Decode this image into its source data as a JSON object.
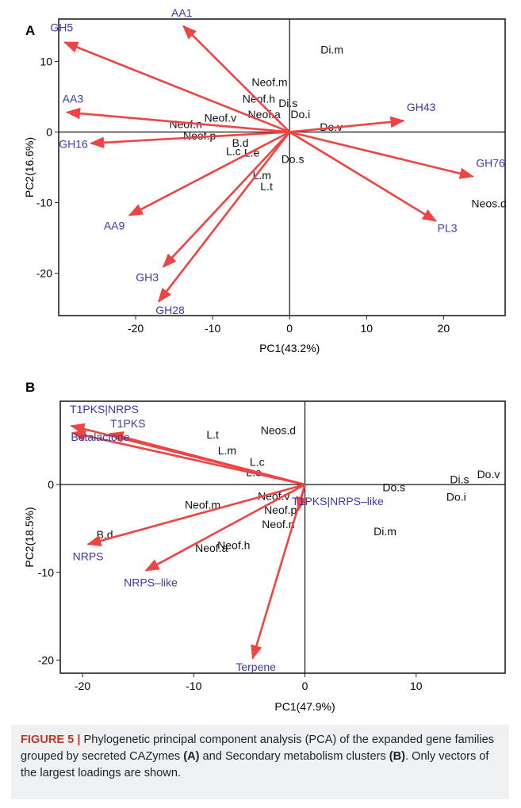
{
  "chart_data": [
    {
      "panel": "A",
      "type": "scatter",
      "subtype": "pca-biplot",
      "xlabel": "PC1(43.2%)",
      "ylabel": "PC2(16.6%)",
      "xlim": [
        -30,
        28
      ],
      "ylim": [
        -26,
        16
      ],
      "xticks": [
        -20,
        -10,
        0,
        10,
        20
      ],
      "yticks": [
        -20,
        -10,
        0,
        10
      ],
      "grid": false,
      "zero_lines": true,
      "arrow_color": "#ee4444",
      "vector_label_color": "#3a3aa8",
      "vectors": [
        {
          "label": "AA1",
          "x": -13.8,
          "y": 15.0
        },
        {
          "label": "GH5",
          "x": -29.2,
          "y": 12.7
        },
        {
          "label": "AA3",
          "x": -28.9,
          "y": 2.8
        },
        {
          "label": "GH16",
          "x": -25.8,
          "y": -1.6
        },
        {
          "label": "AA9",
          "x": -20.8,
          "y": -11.8
        },
        {
          "label": "GH3",
          "x": -16.4,
          "y": -19.1
        },
        {
          "label": "GH28",
          "x": -17.0,
          "y": -24.0
        },
        {
          "label": "GH43",
          "x": 14.8,
          "y": 1.6
        },
        {
          "label": "GH76",
          "x": 23.8,
          "y": -6.3
        },
        {
          "label": "PL3",
          "x": 19.0,
          "y": -12.6
        }
      ],
      "points": [
        {
          "label": "Di.m",
          "x": 5.5,
          "y": 11.7
        },
        {
          "label": "Neof.m",
          "x": -2.6,
          "y": 7.1
        },
        {
          "label": "Neof.h",
          "x": -4.0,
          "y": 4.7
        },
        {
          "label": "Di.s",
          "x": -0.2,
          "y": 4.1
        },
        {
          "label": "Neof.v",
          "x": -9.0,
          "y": 2.0
        },
        {
          "label": "Neof.a",
          "x": -3.3,
          "y": 2.5
        },
        {
          "label": "Do.i",
          "x": 1.4,
          "y": 2.5
        },
        {
          "label": "Neof.n",
          "x": -13.5,
          "y": 1.1
        },
        {
          "label": "Do.v",
          "x": 5.4,
          "y": 0.7
        },
        {
          "label": "Neof.p",
          "x": -11.7,
          "y": -0.5
        },
        {
          "label": "B.d",
          "x": -6.4,
          "y": -1.5
        },
        {
          "label": "L.c",
          "x": -7.3,
          "y": -2.7
        },
        {
          "label": "L.e",
          "x": -4.9,
          "y": -2.9
        },
        {
          "label": "Do.s",
          "x": 0.4,
          "y": -3.8
        },
        {
          "label": "L.m",
          "x": -3.6,
          "y": -6.1
        },
        {
          "label": "L.t",
          "x": -3.0,
          "y": -7.7
        },
        {
          "label": "Neos.d",
          "x": 25.9,
          "y": -10.1
        }
      ]
    },
    {
      "panel": "B",
      "type": "scatter",
      "subtype": "pca-biplot",
      "xlabel": "PC1(47.9%)",
      "ylabel": "PC2(18.5%)",
      "xlim": [
        -22,
        18
      ],
      "ylim": [
        -21.5,
        9.5
      ],
      "xticks": [
        -20,
        -10,
        0,
        10
      ],
      "yticks": [
        -20,
        -10,
        0
      ],
      "grid": false,
      "zero_lines": true,
      "arrow_color": "#ee4444",
      "vector_label_color": "#3a3aa8",
      "vectors": [
        {
          "label": "T1PKS|NRPS",
          "x": -21.0,
          "y": 6.7
        },
        {
          "label": "T1PKS",
          "x": -17.5,
          "y": 5.8
        },
        {
          "label": "Betalactone",
          "x": -20.9,
          "y": 5.9
        },
        {
          "label": "NRPS",
          "x": -19.5,
          "y": -6.8
        },
        {
          "label": "NRPS–like",
          "x": -14.3,
          "y": -9.8
        },
        {
          "label": "Terpene",
          "x": -4.7,
          "y": -19.8
        },
        {
          "label": "T1PKS|NRPS–like",
          "x": -0.6,
          "y": -2.9
        }
      ],
      "points": [
        {
          "label": "L.t",
          "x": -8.3,
          "y": 5.7
        },
        {
          "label": "Neos.d",
          "x": -2.4,
          "y": 6.2
        },
        {
          "label": "L.m",
          "x": -7.0,
          "y": 3.9
        },
        {
          "label": "L.c",
          "x": -4.3,
          "y": 2.6
        },
        {
          "label": "L.e",
          "x": -4.6,
          "y": 1.4
        },
        {
          "label": "Do.v",
          "x": 16.5,
          "y": 1.2
        },
        {
          "label": "Di.s",
          "x": 13.9,
          "y": 0.6
        },
        {
          "label": "Do.s",
          "x": 8.0,
          "y": -0.3
        },
        {
          "label": "Do.i",
          "x": 13.6,
          "y": -1.4
        },
        {
          "label": "Neof.m",
          "x": -9.2,
          "y": -2.3
        },
        {
          "label": "Neof.v",
          "x": -2.8,
          "y": -1.3
        },
        {
          "label": "Neof.p",
          "x": -2.2,
          "y": -2.9
        },
        {
          "label": "Neof.n",
          "x": -2.4,
          "y": -4.5
        },
        {
          "label": "B.d",
          "x": -18.0,
          "y": -5.7
        },
        {
          "label": "Neof.h",
          "x": -6.4,
          "y": -6.9
        },
        {
          "label": "Neof.a",
          "x": -8.4,
          "y": -7.2
        },
        {
          "label": "Di.m",
          "x": 7.2,
          "y": -5.3
        }
      ]
    }
  ],
  "caption": {
    "label": "FIGURE 5 |",
    "part1": " Phylogenetic principal component analysis (PCA) of the expanded gene families grouped by secreted CAZymes ",
    "ref_a": "(A)",
    "part2": " and Secondary metabolism clusters ",
    "ref_b": "(B)",
    "part3": ". Only vectors of the largest loadings are shown."
  }
}
